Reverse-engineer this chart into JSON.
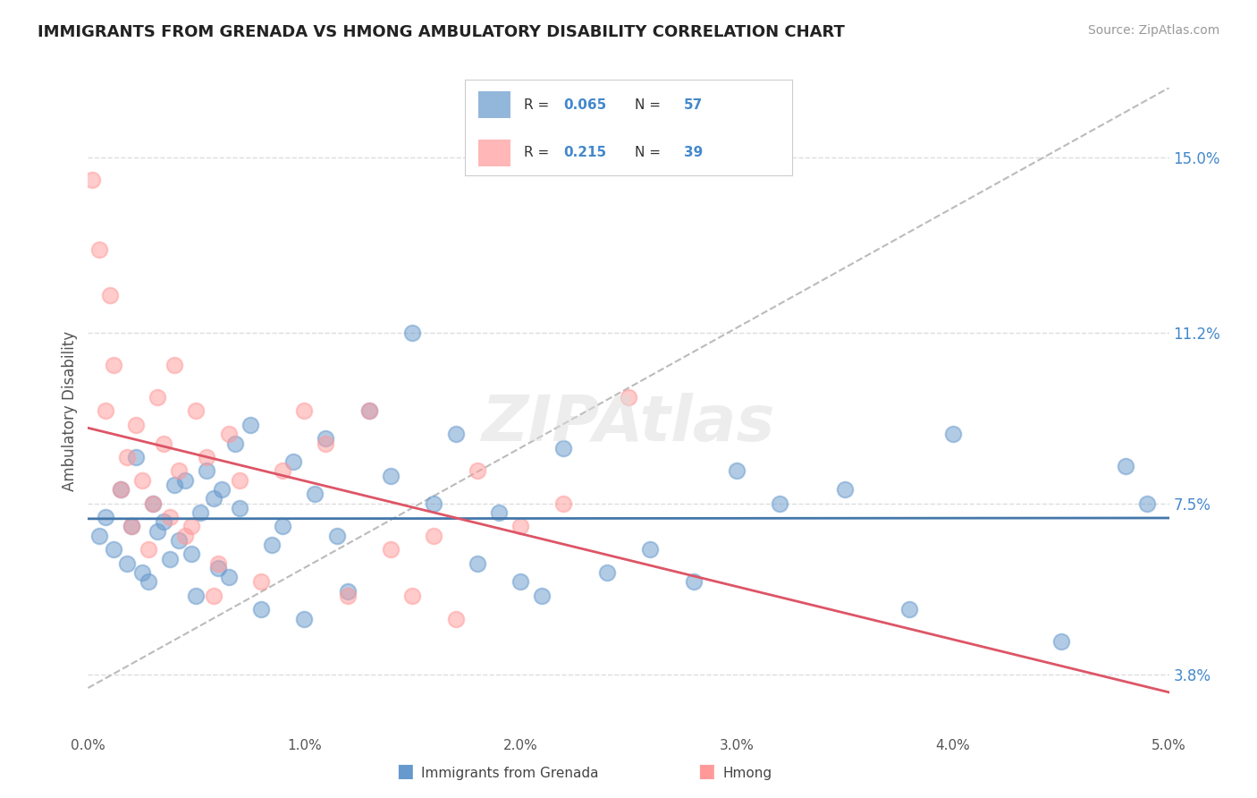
{
  "title": "IMMIGRANTS FROM GRENADA VS HMONG AMBULATORY DISABILITY CORRELATION CHART",
  "source": "Source: ZipAtlas.com",
  "ylabel": "Ambulatory Disability",
  "legend_label1": "Immigrants from Grenada",
  "legend_label2": "Hmong",
  "R1": "0.065",
  "N1": "57",
  "R2": "0.215",
  "N2": "39",
  "xlim": [
    0.0,
    5.0
  ],
  "ylim": [
    2.5,
    16.5
  ],
  "xtick_labels": [
    "0.0%",
    "1.0%",
    "2.0%",
    "3.0%",
    "4.0%",
    "5.0%"
  ],
  "xtick_vals": [
    0.0,
    1.0,
    2.0,
    3.0,
    4.0,
    5.0
  ],
  "ytick_vals": [
    3.8,
    7.5,
    11.2,
    15.0
  ],
  "ytick_labels": [
    "3.8%",
    "7.5%",
    "11.2%",
    "15.0%"
  ],
  "color_blue": "#6699CC",
  "color_pink": "#FF9999",
  "color_blue_line": "#4477AA",
  "color_pink_line": "#DD5566",
  "color_diag": "#BBBBBB",
  "background_color": "#FFFFFF",
  "grenada_x": [
    0.05,
    0.08,
    0.12,
    0.15,
    0.18,
    0.2,
    0.22,
    0.25,
    0.28,
    0.3,
    0.32,
    0.35,
    0.38,
    0.4,
    0.42,
    0.45,
    0.48,
    0.5,
    0.52,
    0.55,
    0.58,
    0.6,
    0.62,
    0.65,
    0.68,
    0.7,
    0.75,
    0.8,
    0.85,
    0.9,
    0.95,
    1.0,
    1.05,
    1.1,
    1.15,
    1.2,
    1.3,
    1.4,
    1.5,
    1.6,
    1.7,
    1.8,
    1.9,
    2.0,
    2.1,
    2.2,
    2.4,
    2.6,
    2.8,
    3.0,
    3.2,
    3.5,
    3.8,
    4.0,
    4.5,
    4.8,
    4.9
  ],
  "grenada_y": [
    6.8,
    7.2,
    6.5,
    7.8,
    6.2,
    7.0,
    8.5,
    6.0,
    5.8,
    7.5,
    6.9,
    7.1,
    6.3,
    7.9,
    6.7,
    8.0,
    6.4,
    5.5,
    7.3,
    8.2,
    7.6,
    6.1,
    7.8,
    5.9,
    8.8,
    7.4,
    9.2,
    5.2,
    6.6,
    7.0,
    8.4,
    5.0,
    7.7,
    8.9,
    6.8,
    5.6,
    9.5,
    8.1,
    11.2,
    7.5,
    9.0,
    6.2,
    7.3,
    5.8,
    5.5,
    8.7,
    6.0,
    6.5,
    5.8,
    8.2,
    7.5,
    7.8,
    5.2,
    9.0,
    4.5,
    8.3,
    7.5
  ],
  "hmong_x": [
    0.02,
    0.05,
    0.08,
    0.1,
    0.12,
    0.15,
    0.18,
    0.2,
    0.22,
    0.25,
    0.28,
    0.3,
    0.32,
    0.35,
    0.38,
    0.4,
    0.42,
    0.45,
    0.48,
    0.5,
    0.55,
    0.58,
    0.6,
    0.65,
    0.7,
    0.8,
    0.9,
    1.0,
    1.1,
    1.2,
    1.3,
    1.4,
    1.5,
    1.6,
    1.7,
    1.8,
    2.0,
    2.2,
    2.5
  ],
  "hmong_y": [
    14.5,
    13.0,
    9.5,
    12.0,
    10.5,
    7.8,
    8.5,
    7.0,
    9.2,
    8.0,
    6.5,
    7.5,
    9.8,
    8.8,
    7.2,
    10.5,
    8.2,
    6.8,
    7.0,
    9.5,
    8.5,
    5.5,
    6.2,
    9.0,
    8.0,
    5.8,
    8.2,
    9.5,
    8.8,
    5.5,
    9.5,
    6.5,
    5.5,
    6.8,
    5.0,
    8.2,
    7.0,
    7.5,
    9.8
  ]
}
